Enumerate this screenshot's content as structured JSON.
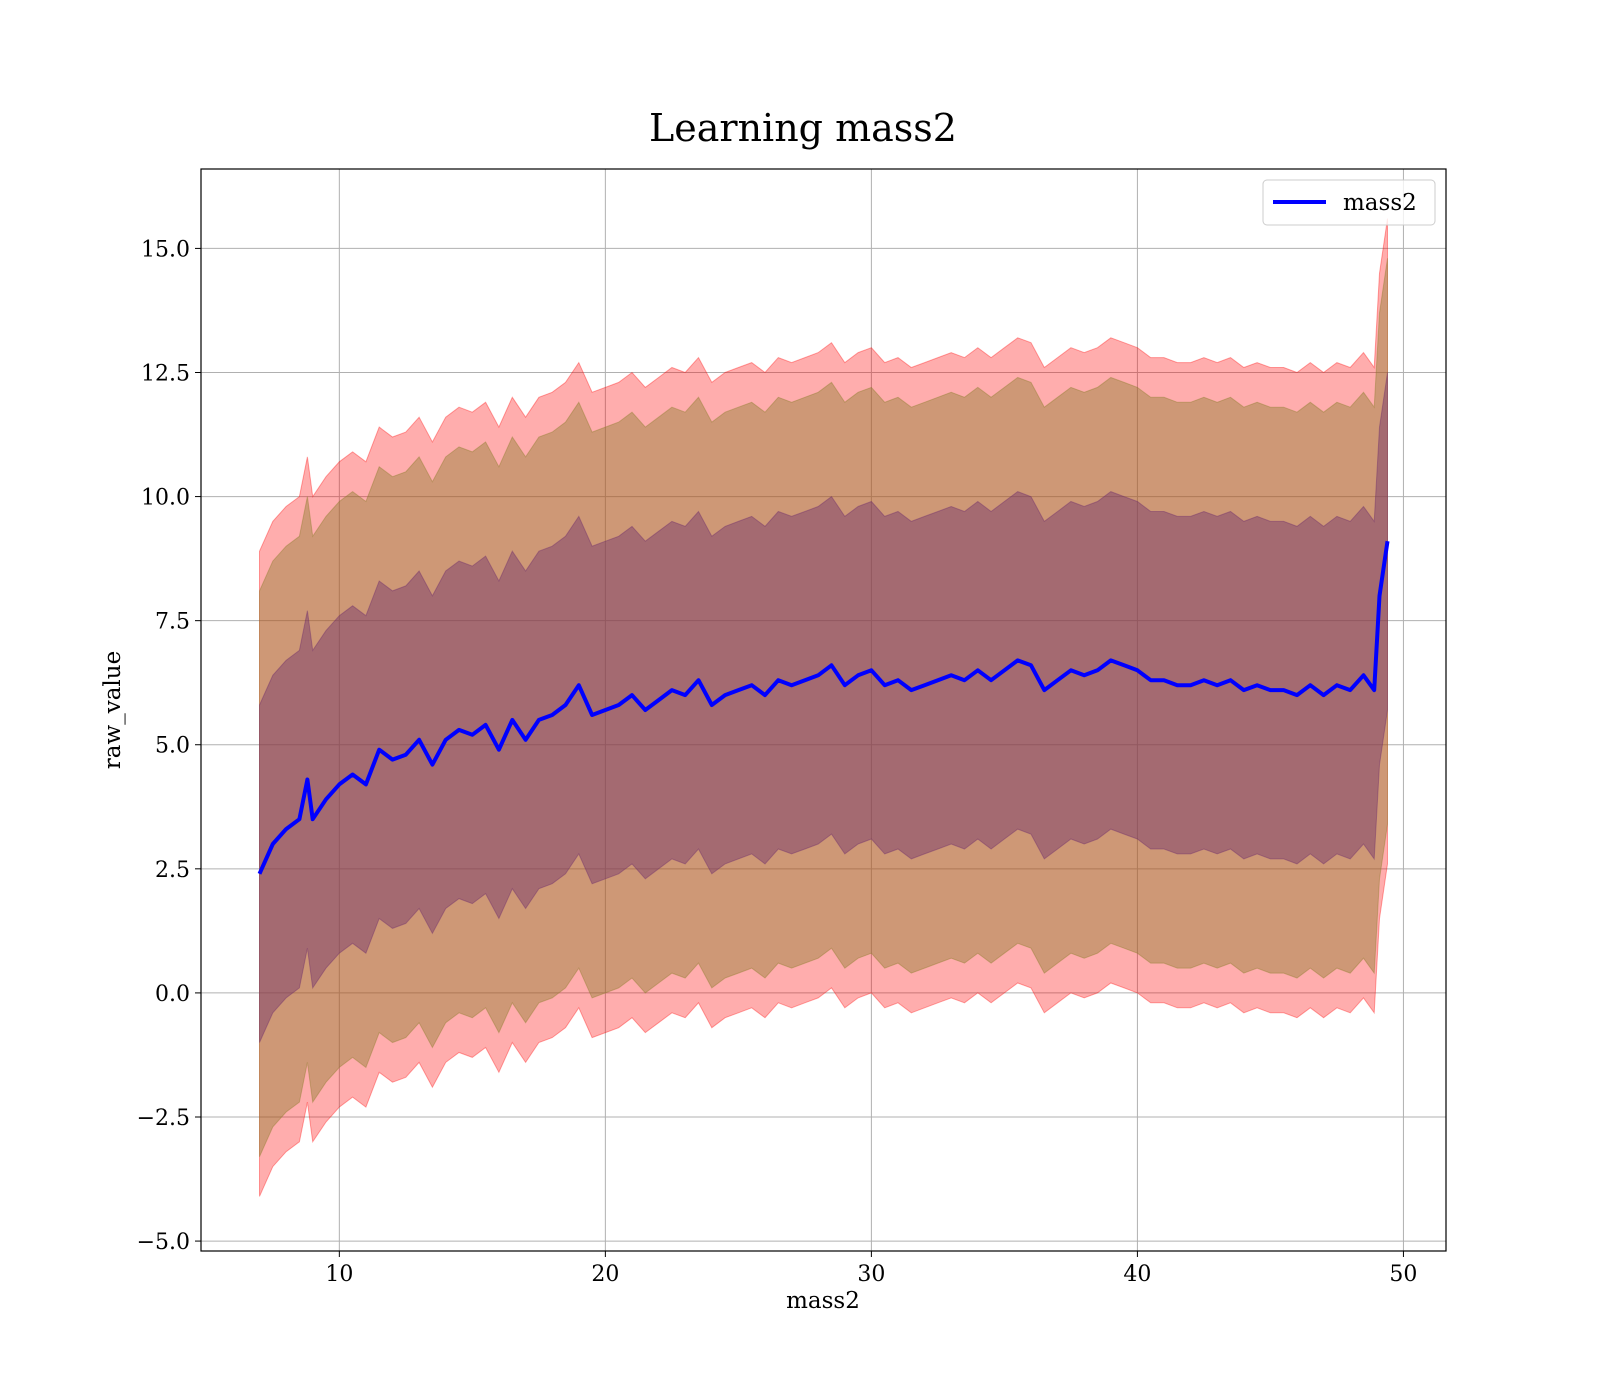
{
  "chart_data": {
    "type": "line",
    "title": "Learning mass2",
    "xlabel": "mass2",
    "ylabel": "raw_value",
    "xlim": [
      4.8,
      51.6
    ],
    "ylim": [
      -5.2,
      16.6
    ],
    "xticks": [
      10,
      20,
      30,
      40,
      50
    ],
    "xtick_labels": [
      "10",
      "20",
      "30",
      "40",
      "50"
    ],
    "yticks": [
      -5.0,
      -2.5,
      0.0,
      2.5,
      5.0,
      7.5,
      10.0,
      12.5,
      15.0
    ],
    "ytick_labels": [
      "−5.0",
      "−2.5",
      "0.0",
      "2.5",
      "5.0",
      "7.5",
      "10.0",
      "12.5",
      "15.0"
    ],
    "grid": true,
    "legend": {
      "placement": "top-right",
      "entries": [
        "mass2"
      ]
    },
    "colors": {
      "mean_line": "#0000ff",
      "band_outer": "#ff0000",
      "band_middle": "#8b7d2a",
      "band_inner": "#6b2a6b"
    },
    "series": [
      {
        "name": "mass2",
        "x": [
          7.0,
          7.5,
          8.0,
          8.5,
          8.8,
          9.0,
          9.5,
          10.0,
          10.5,
          11.0,
          11.5,
          12.0,
          12.5,
          13.0,
          13.5,
          14.0,
          14.5,
          15.0,
          15.5,
          16.0,
          16.5,
          17.0,
          17.5,
          18.0,
          18.5,
          19.0,
          19.5,
          20.0,
          20.5,
          21.0,
          21.5,
          22.0,
          22.5,
          23.0,
          23.5,
          24.0,
          24.5,
          25.0,
          25.5,
          26.0,
          26.5,
          27.0,
          27.5,
          28.0,
          28.5,
          29.0,
          29.5,
          30.0,
          30.5,
          31.0,
          31.5,
          32.0,
          32.5,
          33.0,
          33.5,
          34.0,
          34.5,
          35.0,
          35.5,
          36.0,
          36.5,
          37.0,
          37.5,
          38.0,
          38.5,
          39.0,
          39.5,
          40.0,
          40.5,
          41.0,
          41.5,
          42.0,
          42.5,
          43.0,
          43.5,
          44.0,
          44.5,
          45.0,
          45.5,
          46.0,
          46.5,
          47.0,
          47.5,
          48.0,
          48.5,
          48.9,
          49.1,
          49.4
        ],
        "mean": [
          2.4,
          3.0,
          3.3,
          3.5,
          4.3,
          3.5,
          3.9,
          4.2,
          4.4,
          4.2,
          4.9,
          4.7,
          4.8,
          5.1,
          4.6,
          5.1,
          5.3,
          5.2,
          5.4,
          4.9,
          5.5,
          5.1,
          5.5,
          5.6,
          5.8,
          6.2,
          5.6,
          5.7,
          5.8,
          6.0,
          5.7,
          5.9,
          6.1,
          6.0,
          6.3,
          5.8,
          6.0,
          6.1,
          6.2,
          6.0,
          6.3,
          6.2,
          6.3,
          6.4,
          6.6,
          6.2,
          6.4,
          6.5,
          6.2,
          6.3,
          6.1,
          6.2,
          6.3,
          6.4,
          6.3,
          6.5,
          6.3,
          6.5,
          6.7,
          6.6,
          6.1,
          6.3,
          6.5,
          6.4,
          6.5,
          6.7,
          6.6,
          6.5,
          6.3,
          6.3,
          6.2,
          6.2,
          6.3,
          6.2,
          6.3,
          6.1,
          6.2,
          6.1,
          6.1,
          6.0,
          6.2,
          6.0,
          6.2,
          6.1,
          6.4,
          6.1,
          8.0,
          9.1
        ],
        "half_width_inner": [
          3.4,
          3.4,
          3.4,
          3.4,
          3.4,
          3.4,
          3.4,
          3.4,
          3.4,
          3.4,
          3.4,
          3.4,
          3.4,
          3.4,
          3.4,
          3.4,
          3.4,
          3.4,
          3.4,
          3.4,
          3.4,
          3.4,
          3.4,
          3.4,
          3.4,
          3.4,
          3.4,
          3.4,
          3.4,
          3.4,
          3.4,
          3.4,
          3.4,
          3.4,
          3.4,
          3.4,
          3.4,
          3.4,
          3.4,
          3.4,
          3.4,
          3.4,
          3.4,
          3.4,
          3.4,
          3.4,
          3.4,
          3.4,
          3.4,
          3.4,
          3.4,
          3.4,
          3.4,
          3.4,
          3.4,
          3.4,
          3.4,
          3.4,
          3.4,
          3.4,
          3.4,
          3.4,
          3.4,
          3.4,
          3.4,
          3.4,
          3.4,
          3.4,
          3.4,
          3.4,
          3.4,
          3.4,
          3.4,
          3.4,
          3.4,
          3.4,
          3.4,
          3.4,
          3.4,
          3.4,
          3.4,
          3.4,
          3.4,
          3.4,
          3.4,
          3.4,
          3.4,
          3.4
        ],
        "half_width_middle": [
          5.7,
          5.7,
          5.7,
          5.7,
          5.7,
          5.7,
          5.7,
          5.7,
          5.7,
          5.7,
          5.7,
          5.7,
          5.7,
          5.7,
          5.7,
          5.7,
          5.7,
          5.7,
          5.7,
          5.7,
          5.7,
          5.7,
          5.7,
          5.7,
          5.7,
          5.7,
          5.7,
          5.7,
          5.7,
          5.7,
          5.7,
          5.7,
          5.7,
          5.7,
          5.7,
          5.7,
          5.7,
          5.7,
          5.7,
          5.7,
          5.7,
          5.7,
          5.7,
          5.7,
          5.7,
          5.7,
          5.7,
          5.7,
          5.7,
          5.7,
          5.7,
          5.7,
          5.7,
          5.7,
          5.7,
          5.7,
          5.7,
          5.7,
          5.7,
          5.7,
          5.7,
          5.7,
          5.7,
          5.7,
          5.7,
          5.7,
          5.7,
          5.7,
          5.7,
          5.7,
          5.7,
          5.7,
          5.7,
          5.7,
          5.7,
          5.7,
          5.7,
          5.7,
          5.7,
          5.7,
          5.7,
          5.7,
          5.7,
          5.7,
          5.7,
          5.7,
          5.7,
          5.7
        ],
        "half_width_outer": [
          6.5,
          6.5,
          6.5,
          6.5,
          6.5,
          6.5,
          6.5,
          6.5,
          6.5,
          6.5,
          6.5,
          6.5,
          6.5,
          6.5,
          6.5,
          6.5,
          6.5,
          6.5,
          6.5,
          6.5,
          6.5,
          6.5,
          6.5,
          6.5,
          6.5,
          6.5,
          6.5,
          6.5,
          6.5,
          6.5,
          6.5,
          6.5,
          6.5,
          6.5,
          6.5,
          6.5,
          6.5,
          6.5,
          6.5,
          6.5,
          6.5,
          6.5,
          6.5,
          6.5,
          6.5,
          6.5,
          6.5,
          6.5,
          6.5,
          6.5,
          6.5,
          6.5,
          6.5,
          6.5,
          6.5,
          6.5,
          6.5,
          6.5,
          6.5,
          6.5,
          6.5,
          6.5,
          6.5,
          6.5,
          6.5,
          6.5,
          6.5,
          6.5,
          6.5,
          6.5,
          6.5,
          6.5,
          6.5,
          6.5,
          6.5,
          6.5,
          6.5,
          6.5,
          6.5,
          6.5,
          6.5,
          6.5,
          6.5,
          6.5,
          6.5,
          6.5,
          6.5,
          6.5
        ]
      }
    ]
  }
}
